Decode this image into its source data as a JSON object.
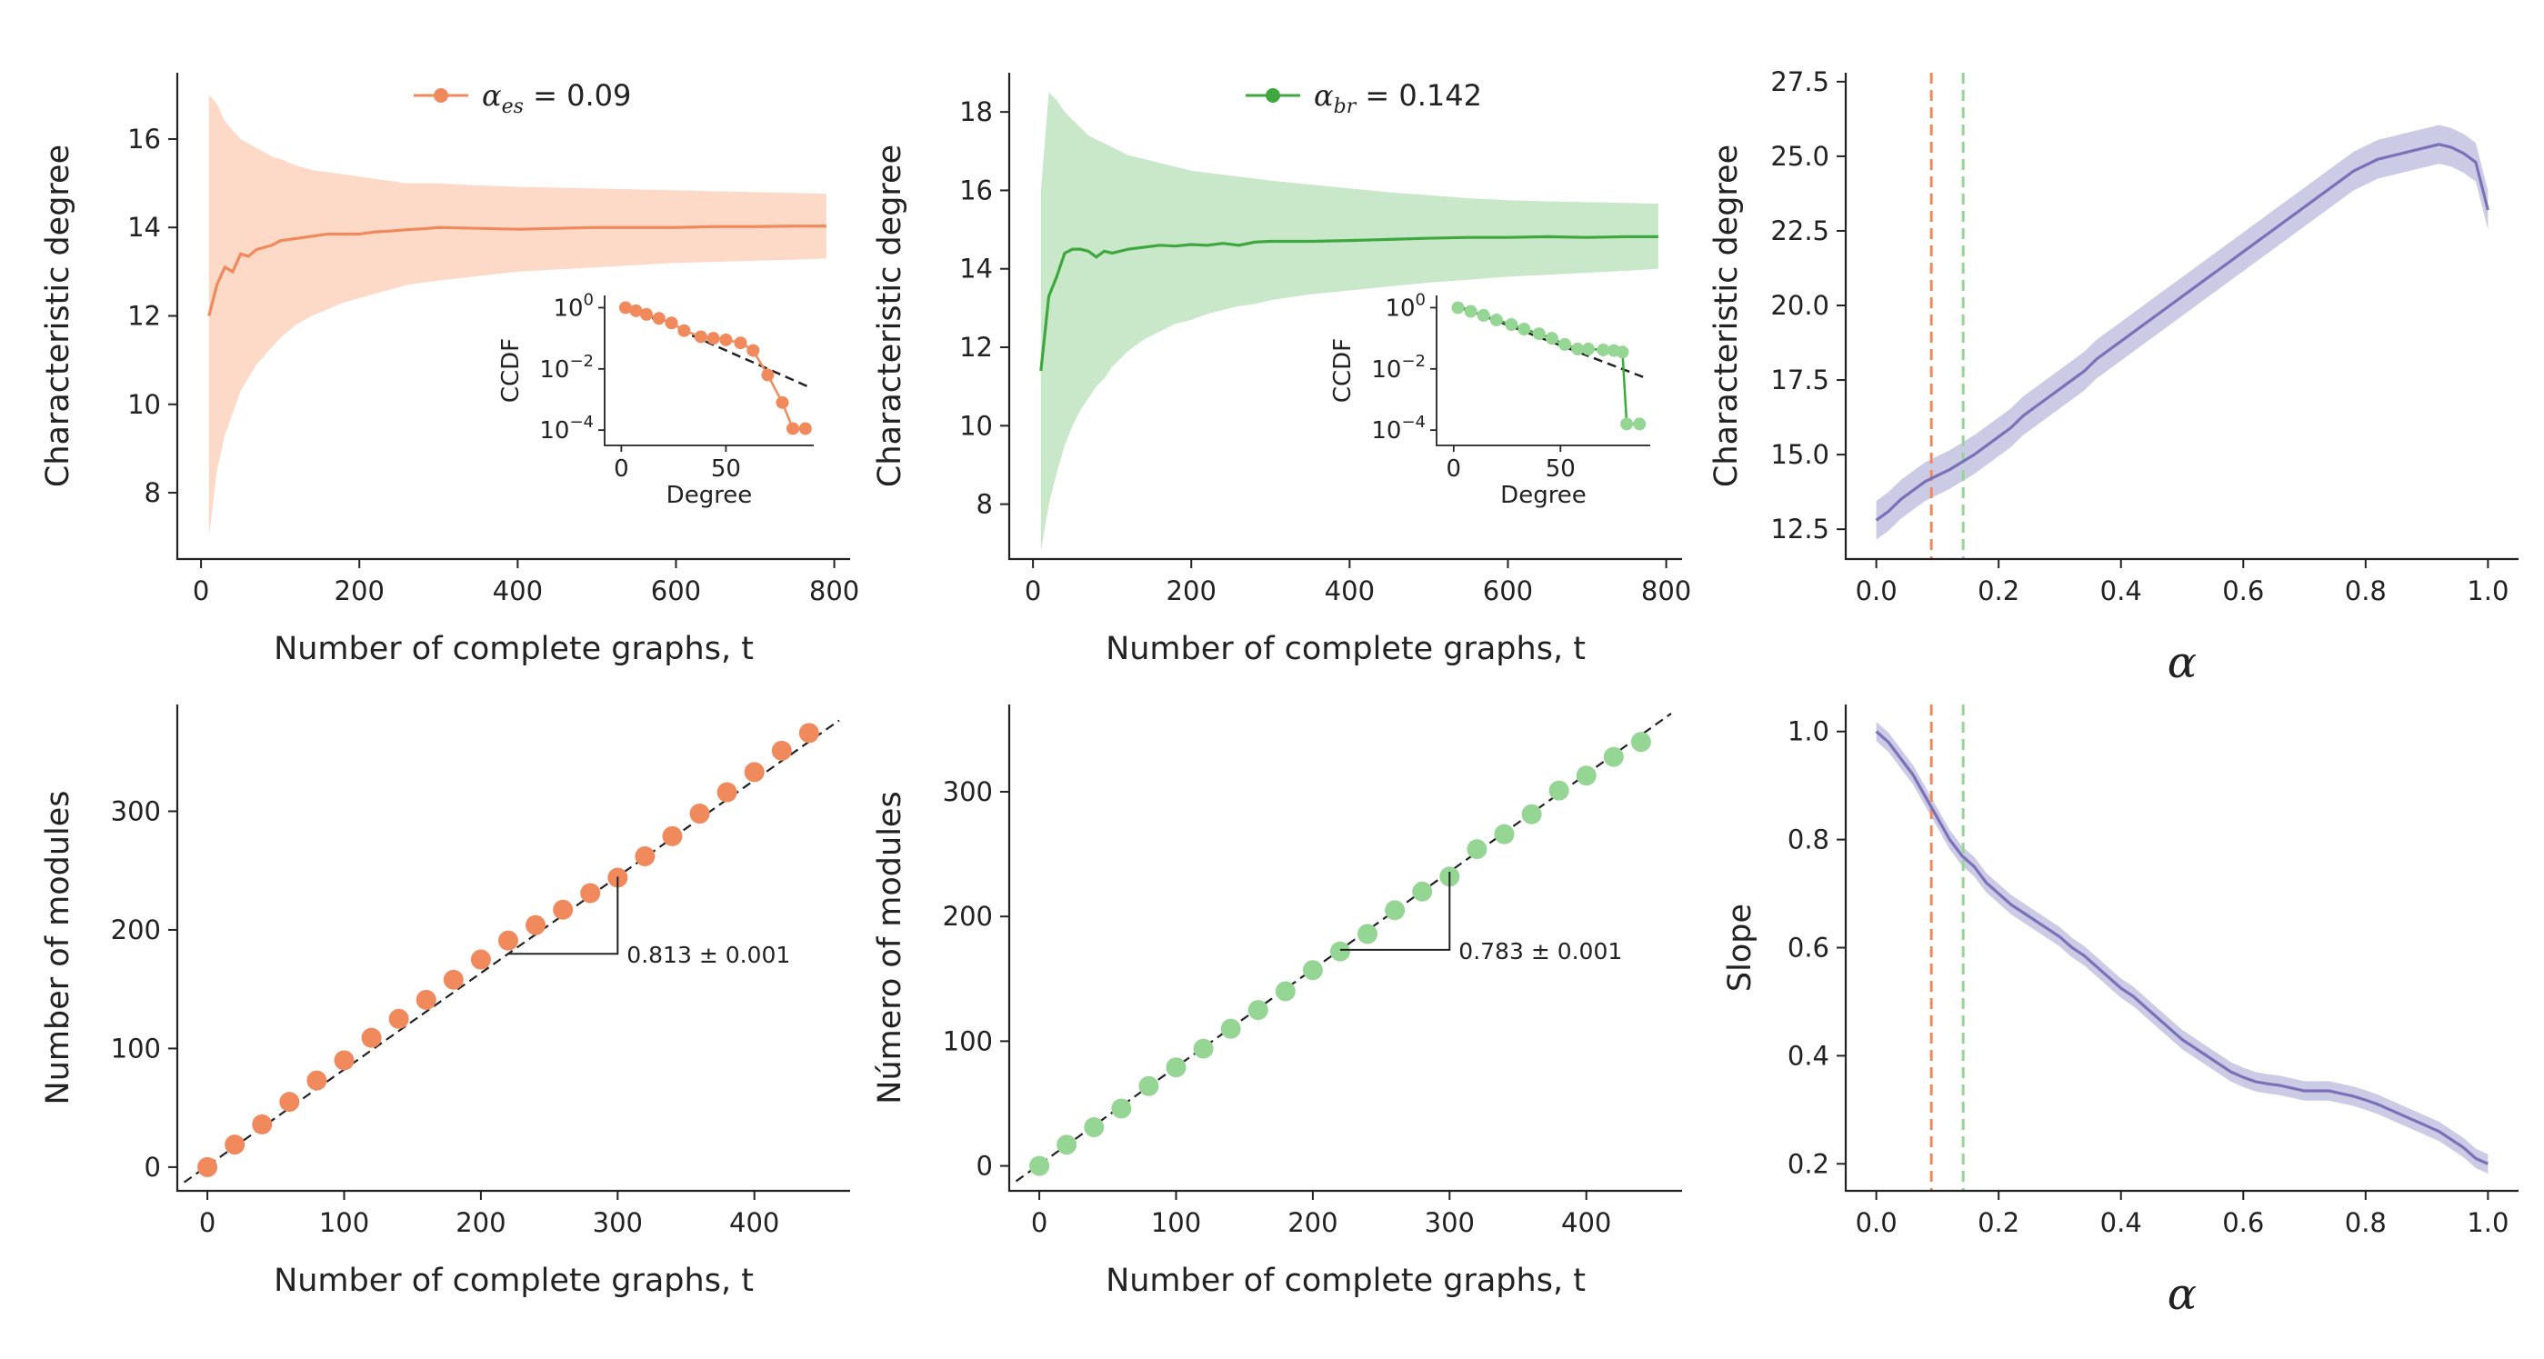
{
  "colors": {
    "orange": "#f08a5d",
    "orange_fill": "#fdd9c8",
    "green": "#3ea83e",
    "green_fill": "#c9e7c9",
    "light_green": "#95d695",
    "purple": "#7b71b8",
    "purple_fill": "#cccbe6",
    "dashed": "#333333"
  },
  "chart_data": [
    {
      "id": "top-left",
      "type": "line",
      "xlabel": "Number of complete graphs, t",
      "ylabel": "Characteristic degree",
      "xlim": [
        -30,
        820
      ],
      "ylim": [
        6.5,
        17.5
      ],
      "xticks": [
        0,
        200,
        400,
        600,
        800
      ],
      "yticks": [
        8,
        10,
        12,
        14,
        16
      ],
      "legend": {
        "symbol": "α_es",
        "value": "= 0.09",
        "position": "top-center"
      },
      "color": "orange",
      "series": [
        {
          "x": [
            10,
            20,
            30,
            40,
            50,
            60,
            70,
            80,
            90,
            100,
            120,
            140,
            160,
            180,
            200,
            220,
            240,
            260,
            280,
            300,
            350,
            400,
            450,
            500,
            550,
            600,
            650,
            700,
            750,
            790
          ],
          "y": [
            12.0,
            12.7,
            13.1,
            13.0,
            13.4,
            13.35,
            13.5,
            13.55,
            13.6,
            13.7,
            13.75,
            13.8,
            13.85,
            13.85,
            13.85,
            13.9,
            13.92,
            13.95,
            13.97,
            14.0,
            13.98,
            13.96,
            13.98,
            14.0,
            14.0,
            14.0,
            14.02,
            14.02,
            14.03,
            14.03
          ]
        }
      ],
      "band": {
        "lower": [
          7.0,
          8.5,
          9.3,
          9.8,
          10.3,
          10.6,
          10.9,
          11.1,
          11.3,
          11.5,
          11.8,
          12.0,
          12.15,
          12.3,
          12.4,
          12.5,
          12.6,
          12.7,
          12.75,
          12.8,
          12.9,
          13.0,
          13.05,
          13.1,
          13.15,
          13.2,
          13.22,
          13.25,
          13.27,
          13.3
        ],
        "upper": [
          17.0,
          16.8,
          16.4,
          16.2,
          16.0,
          15.9,
          15.8,
          15.7,
          15.6,
          15.55,
          15.4,
          15.3,
          15.25,
          15.2,
          15.15,
          15.1,
          15.05,
          15.0,
          15.0,
          15.0,
          14.95,
          14.92,
          14.9,
          14.88,
          14.86,
          14.84,
          14.82,
          14.8,
          14.78,
          14.76
        ]
      },
      "inset": {
        "xlabel": "Degree",
        "ylabel": "CCDF",
        "xticks": [
          0,
          50
        ],
        "yticks_exp": [
          0,
          -2,
          -4
        ],
        "xlim": [
          -8,
          92
        ],
        "ylim_exp": [
          -4.5,
          0.4
        ],
        "points": [
          [
            2,
            0
          ],
          [
            7,
            -0.1
          ],
          [
            12,
            -0.22
          ],
          [
            18,
            -0.35
          ],
          [
            24,
            -0.5
          ],
          [
            30,
            -0.75
          ],
          [
            38,
            -0.95
          ],
          [
            44,
            -1.0
          ],
          [
            50,
            -1.05
          ],
          [
            57,
            -1.15
          ],
          [
            63,
            -1.4
          ],
          [
            70,
            -2.2
          ],
          [
            77,
            -3.1
          ],
          [
            82,
            -3.95
          ],
          [
            88,
            -3.95
          ]
        ],
        "fit": [
          [
            2,
            0.05
          ],
          [
            90,
            -2.6
          ]
        ]
      }
    },
    {
      "id": "top-middle",
      "type": "line",
      "xlabel": "Number of complete graphs, t",
      "ylabel": "Characteristic degree",
      "xlim": [
        -30,
        820
      ],
      "ylim": [
        6.6,
        19.0
      ],
      "xticks": [
        0,
        200,
        400,
        600,
        800
      ],
      "yticks": [
        8,
        10,
        12,
        14,
        16,
        18
      ],
      "legend": {
        "symbol": "α_br",
        "value": "= 0.142",
        "position": "top-center"
      },
      "color": "green",
      "series": [
        {
          "x": [
            10,
            20,
            30,
            40,
            50,
            60,
            70,
            80,
            90,
            100,
            120,
            140,
            160,
            180,
            200,
            220,
            240,
            260,
            280,
            300,
            350,
            400,
            450,
            500,
            550,
            600,
            650,
            700,
            750,
            790
          ],
          "y": [
            11.4,
            13.3,
            13.8,
            14.4,
            14.5,
            14.5,
            14.45,
            14.3,
            14.45,
            14.4,
            14.5,
            14.55,
            14.6,
            14.58,
            14.62,
            14.6,
            14.65,
            14.6,
            14.68,
            14.7,
            14.7,
            14.72,
            14.75,
            14.78,
            14.8,
            14.8,
            14.82,
            14.8,
            14.82,
            14.82
          ]
        }
      ],
      "band": {
        "lower": [
          6.8,
          8.0,
          8.8,
          9.5,
          10.0,
          10.4,
          10.7,
          11.0,
          11.2,
          11.5,
          11.9,
          12.2,
          12.4,
          12.6,
          12.7,
          12.85,
          12.95,
          13.05,
          13.1,
          13.2,
          13.35,
          13.45,
          13.55,
          13.65,
          13.72,
          13.8,
          13.85,
          13.9,
          13.95,
          14.0
        ],
        "upper": [
          16.0,
          18.5,
          18.3,
          18.0,
          17.8,
          17.6,
          17.4,
          17.3,
          17.2,
          17.1,
          16.9,
          16.8,
          16.7,
          16.6,
          16.5,
          16.45,
          16.4,
          16.35,
          16.3,
          16.25,
          16.15,
          16.05,
          15.95,
          15.88,
          15.8,
          15.75,
          15.72,
          15.7,
          15.68,
          15.66
        ]
      },
      "inset": {
        "xlabel": "Degree",
        "ylabel": "CCDF",
        "xticks": [
          0,
          50
        ],
        "yticks_exp": [
          0,
          -2,
          -4
        ],
        "xlim": [
          -8,
          92
        ],
        "ylim_exp": [
          -4.5,
          0.4
        ],
        "points": [
          [
            2,
            0
          ],
          [
            8,
            -0.12
          ],
          [
            14,
            -0.25
          ],
          [
            20,
            -0.4
          ],
          [
            27,
            -0.55
          ],
          [
            33,
            -0.7
          ],
          [
            40,
            -0.85
          ],
          [
            46,
            -1.0
          ],
          [
            52,
            -1.2
          ],
          [
            58,
            -1.35
          ],
          [
            63,
            -1.35
          ],
          [
            70,
            -1.38
          ],
          [
            75,
            -1.4
          ],
          [
            79,
            -1.45
          ],
          [
            81,
            -3.8
          ],
          [
            87,
            -3.8
          ]
        ],
        "fit": [
          [
            2,
            0.05
          ],
          [
            90,
            -2.3
          ]
        ]
      }
    },
    {
      "id": "top-right",
      "type": "line",
      "xlabel": "α",
      "ylabel": "Characteristic degree",
      "xlim": [
        -0.05,
        1.05
      ],
      "ylim": [
        11.5,
        27.8
      ],
      "xticks": [
        0.0,
        0.2,
        0.4,
        0.6,
        0.8,
        1.0
      ],
      "yticks": [
        12.5,
        15.0,
        17.5,
        20.0,
        22.5,
        25.0,
        27.5
      ],
      "color": "purple",
      "vlines": [
        {
          "x": 0.09,
          "color": "orange"
        },
        {
          "x": 0.142,
          "color": "light_green"
        }
      ],
      "series": [
        {
          "x": [
            0,
            0.02,
            0.04,
            0.06,
            0.08,
            0.1,
            0.12,
            0.14,
            0.16,
            0.18,
            0.2,
            0.22,
            0.24,
            0.26,
            0.28,
            0.3,
            0.32,
            0.34,
            0.36,
            0.38,
            0.4,
            0.42,
            0.44,
            0.46,
            0.48,
            0.5,
            0.52,
            0.54,
            0.56,
            0.58,
            0.6,
            0.62,
            0.64,
            0.66,
            0.68,
            0.7,
            0.72,
            0.74,
            0.76,
            0.78,
            0.8,
            0.82,
            0.84,
            0.86,
            0.88,
            0.9,
            0.92,
            0.94,
            0.96,
            0.98,
            1.0
          ],
          "y": [
            12.8,
            13.1,
            13.5,
            13.8,
            14.1,
            14.3,
            14.5,
            14.75,
            15.0,
            15.3,
            15.6,
            15.9,
            16.3,
            16.6,
            16.9,
            17.2,
            17.5,
            17.8,
            18.2,
            18.5,
            18.8,
            19.1,
            19.4,
            19.7,
            20.0,
            20.3,
            20.6,
            20.9,
            21.2,
            21.5,
            21.8,
            22.1,
            22.4,
            22.7,
            23.0,
            23.3,
            23.6,
            23.9,
            24.2,
            24.5,
            24.7,
            24.9,
            25.0,
            25.1,
            25.2,
            25.3,
            25.4,
            25.3,
            25.1,
            24.8,
            23.2
          ]
        }
      ],
      "band_halfwidth": 0.65
    },
    {
      "id": "bottom-left",
      "type": "scatter",
      "xlabel": "Number of complete graphs, t",
      "ylabel": "Number of modules",
      "xlim": [
        -22,
        470
      ],
      "ylim": [
        -20,
        390
      ],
      "xticks": [
        0,
        100,
        200,
        300,
        400
      ],
      "yticks": [
        0,
        100,
        200,
        300
      ],
      "color": "orange",
      "points_x": [
        0,
        20,
        40,
        60,
        80,
        100,
        120,
        140,
        160,
        180,
        200,
        220,
        240,
        260,
        280,
        300,
        320,
        340,
        360,
        380,
        400,
        420,
        440
      ],
      "points_y": [
        0,
        19,
        36,
        55,
        73,
        90,
        109,
        125,
        141,
        158,
        175,
        191,
        204,
        217,
        231,
        244,
        262,
        279,
        298,
        316,
        333,
        351,
        366
      ],
      "fit_slope": 0.813,
      "fit_intercept": 1,
      "slope_label": "0.813 ± 0.001",
      "triangle_x": [
        220,
        300
      ]
    },
    {
      "id": "bottom-middle",
      "type": "scatter",
      "xlabel": "Number of complete graphs, t",
      "ylabel": "Número of modules",
      "xlim": [
        -22,
        470
      ],
      "ylim": [
        -20,
        370
      ],
      "xticks": [
        0,
        100,
        200,
        300,
        400
      ],
      "yticks": [
        0,
        100,
        200,
        300
      ],
      "color": "light_green",
      "points_x": [
        0,
        20,
        40,
        60,
        80,
        100,
        120,
        140,
        160,
        180,
        200,
        220,
        240,
        260,
        280,
        300,
        320,
        340,
        360,
        380,
        400,
        420,
        440
      ],
      "points_y": [
        0,
        17,
        31,
        46,
        64,
        79,
        94,
        110,
        125,
        140,
        157,
        172,
        186,
        205,
        220,
        232,
        254,
        266,
        282,
        301,
        313,
        328,
        340
      ],
      "fit_slope": 0.783,
      "fit_intercept": 1,
      "slope_label": "0.783 ± 0.001",
      "triangle_x": [
        220,
        300
      ]
    },
    {
      "id": "bottom-right",
      "type": "line",
      "xlabel": "α",
      "ylabel": "Slope",
      "xlim": [
        -0.05,
        1.05
      ],
      "ylim": [
        0.15,
        1.05
      ],
      "xticks": [
        0.0,
        0.2,
        0.4,
        0.6,
        0.8,
        1.0
      ],
      "yticks": [
        0.2,
        0.4,
        0.6,
        0.8,
        1.0
      ],
      "color": "purple",
      "vlines": [
        {
          "x": 0.09,
          "color": "orange"
        },
        {
          "x": 0.142,
          "color": "light_green"
        }
      ],
      "series": [
        {
          "x": [
            0,
            0.02,
            0.04,
            0.06,
            0.08,
            0.1,
            0.12,
            0.14,
            0.16,
            0.18,
            0.2,
            0.22,
            0.24,
            0.26,
            0.28,
            0.3,
            0.32,
            0.34,
            0.36,
            0.38,
            0.4,
            0.42,
            0.44,
            0.46,
            0.48,
            0.5,
            0.52,
            0.54,
            0.56,
            0.58,
            0.6,
            0.62,
            0.64,
            0.66,
            0.68,
            0.7,
            0.72,
            0.74,
            0.76,
            0.78,
            0.8,
            0.82,
            0.84,
            0.86,
            0.88,
            0.9,
            0.92,
            0.94,
            0.96,
            0.98,
            1.0
          ],
          "y": [
            1.0,
            0.98,
            0.95,
            0.92,
            0.88,
            0.84,
            0.8,
            0.77,
            0.75,
            0.72,
            0.7,
            0.68,
            0.665,
            0.65,
            0.635,
            0.62,
            0.6,
            0.585,
            0.565,
            0.545,
            0.525,
            0.51,
            0.49,
            0.47,
            0.45,
            0.43,
            0.415,
            0.4,
            0.385,
            0.37,
            0.36,
            0.352,
            0.348,
            0.345,
            0.34,
            0.335,
            0.335,
            0.335,
            0.33,
            0.325,
            0.318,
            0.31,
            0.3,
            0.29,
            0.28,
            0.27,
            0.26,
            0.245,
            0.23,
            0.21,
            0.2
          ]
        }
      ],
      "band_halfwidth": 0.018
    }
  ]
}
